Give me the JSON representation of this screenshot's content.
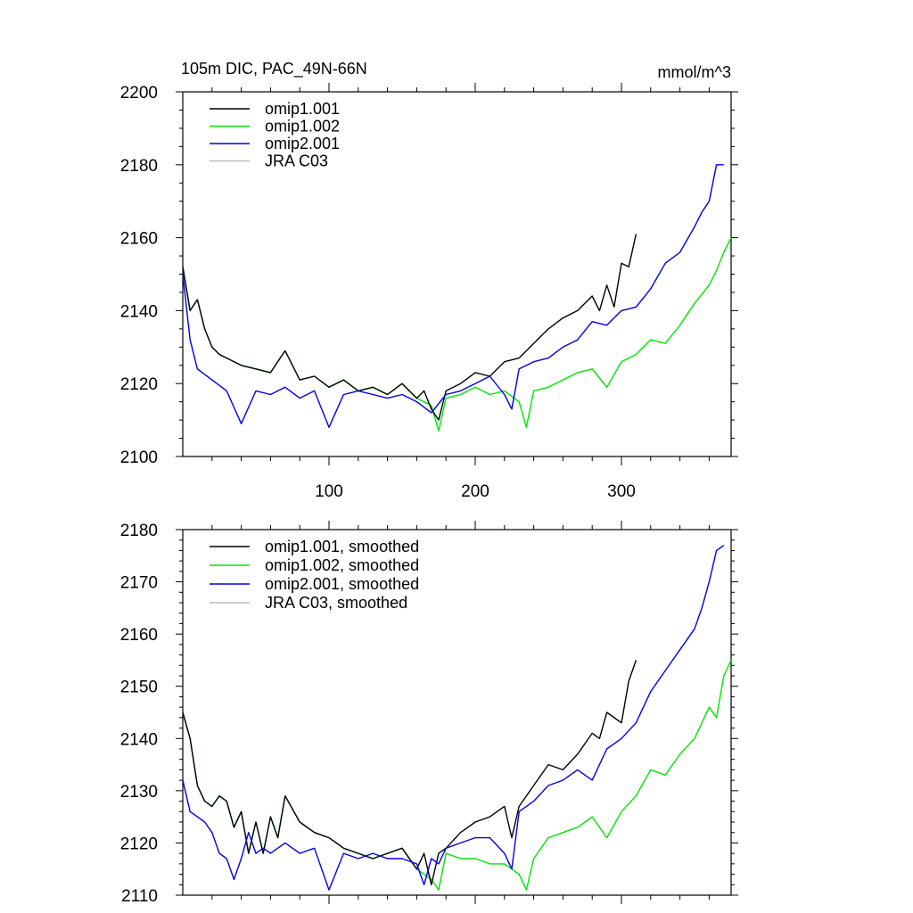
{
  "chart_data": [
    {
      "type": "line",
      "title": "105m DIC, PAC_49N-66N",
      "units": "mmol/m^3",
      "xlabel": "",
      "ylabel": "",
      "xlim": [
        0,
        375
      ],
      "ylim": [
        2100,
        2200
      ],
      "xticks": [
        100,
        200,
        300
      ],
      "xtick_labels": [
        "100",
        "200",
        "300"
      ],
      "yticks": [
        2100,
        2120,
        2140,
        2160,
        2180,
        2200
      ],
      "ytick_labels": [
        "2100",
        "2120",
        "2140",
        "2160",
        "2180",
        "2200"
      ],
      "legend_position": "top-left",
      "series": [
        {
          "name": "omip1.001",
          "color": "#000000",
          "x": [
            0,
            5,
            10,
            15,
            20,
            25,
            30,
            40,
            50,
            60,
            70,
            80,
            90,
            100,
            110,
            120,
            130,
            140,
            150,
            160,
            165,
            170,
            175,
            180,
            190,
            200,
            210,
            220,
            230,
            240,
            250,
            260,
            270,
            280,
            285,
            290,
            295,
            300,
            305,
            310
          ],
          "values": [
            2152,
            2140,
            2143,
            2135,
            2130,
            2128,
            2127,
            2125,
            2124,
            2123,
            2129,
            2121,
            2122,
            2119,
            2121,
            2118,
            2119,
            2117,
            2120,
            2116,
            2118,
            2113,
            2110,
            2118,
            2120,
            2123,
            2122,
            2126,
            2127,
            2131,
            2135,
            2138,
            2140,
            2144,
            2140,
            2147,
            2141,
            2153,
            2152,
            2161
          ]
        },
        {
          "name": "omip1.002",
          "color": "#00e600",
          "x": [
            0,
            5,
            10,
            15,
            20,
            25,
            30,
            40,
            50,
            60,
            70,
            80,
            90,
            100,
            110,
            120,
            130,
            140,
            150,
            160,
            170,
            175,
            180,
            190,
            200,
            210,
            220,
            230,
            235,
            240,
            250,
            260,
            270,
            280,
            290,
            300,
            310,
            320,
            330,
            340,
            350,
            360,
            365,
            370,
            375
          ],
          "values": [
            2152,
            2140,
            2143,
            2135,
            2130,
            2128,
            2127,
            2125,
            2124,
            2123,
            2129,
            2121,
            2122,
            2119,
            2121,
            2118,
            2119,
            2117,
            2120,
            2116,
            2114,
            2107,
            2116,
            2117,
            2119,
            2117,
            2118,
            2115,
            2108,
            2118,
            2119,
            2121,
            2123,
            2124,
            2119,
            2126,
            2128,
            2132,
            2131,
            2136,
            2142,
            2147,
            2151,
            2156,
            2160
          ]
        },
        {
          "name": "omip2.001",
          "color": "#0000e6",
          "x": [
            0,
            5,
            10,
            20,
            30,
            40,
            50,
            60,
            70,
            80,
            90,
            100,
            110,
            120,
            130,
            140,
            150,
            160,
            170,
            180,
            190,
            200,
            210,
            220,
            225,
            230,
            240,
            250,
            260,
            270,
            280,
            290,
            300,
            310,
            320,
            330,
            340,
            350,
            355,
            360,
            365,
            370
          ],
          "values": [
            2150,
            2132,
            2124,
            2121,
            2118,
            2109,
            2118,
            2117,
            2119,
            2116,
            2118,
            2108,
            2117,
            2118,
            2117,
            2116,
            2117,
            2115,
            2112,
            2117,
            2118,
            2120,
            2122,
            2117,
            2113,
            2124,
            2126,
            2127,
            2130,
            2132,
            2137,
            2136,
            2140,
            2141,
            2146,
            2153,
            2156,
            2163,
            2167,
            2170,
            2180,
            2180
          ]
        },
        {
          "name": "JRA C03",
          "color": "#bbbbbb",
          "x": [],
          "values": []
        }
      ]
    },
    {
      "type": "line",
      "title": "",
      "xlabel": "",
      "ylabel": "",
      "xlim": [
        0,
        375
      ],
      "ylim": [
        2110,
        2180
      ],
      "xticks": [
        100,
        200,
        300
      ],
      "yticks": [
        2110,
        2120,
        2130,
        2140,
        2150,
        2160,
        2170,
        2180
      ],
      "ytick_labels": [
        "2110",
        "2120",
        "2130",
        "2140",
        "2150",
        "2160",
        "2170",
        "2180"
      ],
      "legend_position": "top-left",
      "series": [
        {
          "name": "omip1.001, smoothed",
          "color": "#000000",
          "x": [
            0,
            5,
            10,
            15,
            20,
            25,
            30,
            35,
            40,
            45,
            50,
            55,
            60,
            65,
            70,
            80,
            90,
            100,
            110,
            120,
            130,
            140,
            150,
            160,
            165,
            170,
            175,
            180,
            190,
            200,
            210,
            220,
            225,
            230,
            240,
            250,
            260,
            270,
            280,
            285,
            290,
            300,
            305,
            310
          ],
          "values": [
            2145,
            2140,
            2131,
            2128,
            2127,
            2129,
            2128,
            2123,
            2126,
            2118,
            2124,
            2118,
            2125,
            2121,
            2129,
            2124,
            2122,
            2121,
            2119,
            2118,
            2117,
            2118,
            2119,
            2115,
            2118,
            2112,
            2118,
            2119,
            2122,
            2124,
            2125,
            2127,
            2121,
            2127,
            2131,
            2135,
            2134,
            2137,
            2141,
            2140,
            2145,
            2143,
            2151,
            2155
          ]
        },
        {
          "name": "omip1.002, smoothed",
          "color": "#00e600",
          "x": [
            0,
            5,
            10,
            15,
            20,
            25,
            30,
            35,
            40,
            45,
            50,
            55,
            60,
            65,
            70,
            80,
            90,
            100,
            110,
            120,
            130,
            140,
            150,
            160,
            170,
            175,
            180,
            190,
            200,
            210,
            220,
            230,
            235,
            240,
            250,
            260,
            270,
            280,
            290,
            300,
            310,
            320,
            330,
            340,
            350,
            360,
            365,
            370,
            375
          ],
          "values": [
            2145,
            2140,
            2131,
            2128,
            2127,
            2129,
            2128,
            2123,
            2126,
            2118,
            2124,
            2118,
            2125,
            2121,
            2129,
            2124,
            2122,
            2121,
            2119,
            2118,
            2117,
            2118,
            2119,
            2115,
            2113,
            2111,
            2118,
            2117,
            2117,
            2116,
            2116,
            2114,
            2111,
            2117,
            2121,
            2122,
            2123,
            2125,
            2121,
            2126,
            2129,
            2134,
            2133,
            2137,
            2140,
            2146,
            2144,
            2152,
            2155
          ]
        },
        {
          "name": "omip2.001, smoothed",
          "color": "#0000e6",
          "x": [
            0,
            5,
            10,
            15,
            20,
            25,
            30,
            35,
            40,
            45,
            50,
            55,
            60,
            70,
            80,
            90,
            100,
            110,
            120,
            130,
            140,
            150,
            160,
            165,
            170,
            175,
            180,
            190,
            200,
            210,
            220,
            225,
            230,
            240,
            250,
            260,
            270,
            280,
            290,
            300,
            310,
            320,
            330,
            340,
            350,
            355,
            360,
            365,
            370
          ],
          "values": [
            2132,
            2126,
            2125,
            2124,
            2122,
            2118,
            2117,
            2113,
            2117,
            2122,
            2118,
            2119,
            2118,
            2120,
            2118,
            2119,
            2111,
            2118,
            2117,
            2118,
            2117,
            2117,
            2116,
            2112,
            2117,
            2116,
            2119,
            2120,
            2121,
            2121,
            2118,
            2115,
            2126,
            2128,
            2131,
            2132,
            2134,
            2132,
            2138,
            2140,
            2143,
            2149,
            2153,
            2157,
            2161,
            2165,
            2170,
            2176,
            2177
          ]
        },
        {
          "name": "JRA C03, smoothed",
          "color": "#bbbbbb",
          "x": [],
          "values": []
        }
      ]
    }
  ]
}
